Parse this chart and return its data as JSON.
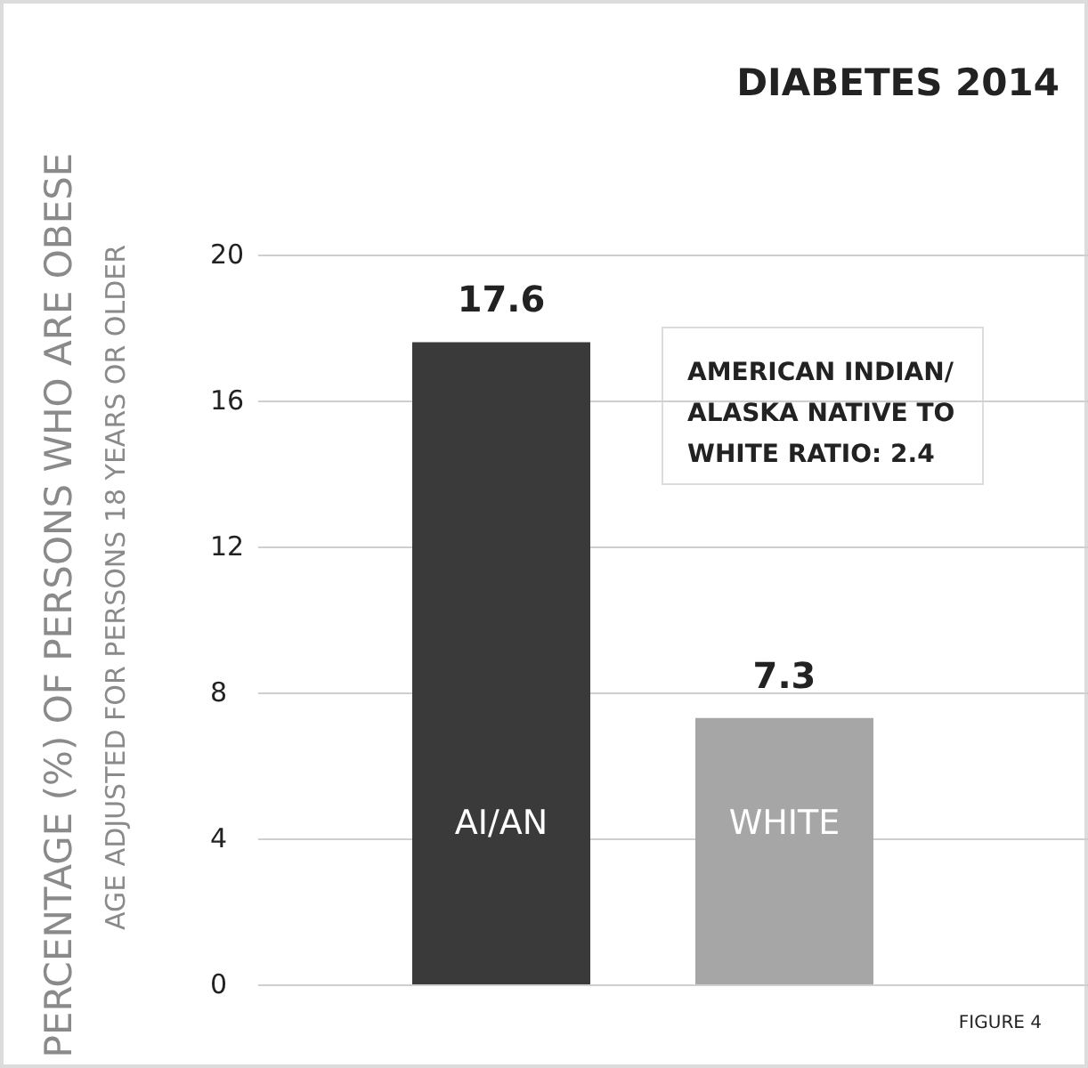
{
  "chart_data": {
    "type": "bar",
    "title": "DIABETES 2014",
    "ylabel": "PERCENTAGE (%) OF PERSONS WHO ARE OBESE",
    "categories": [
      "AI/AN",
      "WHITE"
    ],
    "values": [
      17.6,
      7.3
    ],
    "colors": [
      "#3a3a3a",
      "#a6a6a6"
    ],
    "ylim": [
      0,
      20
    ],
    "yticks": [
      0,
      4,
      8,
      12,
      16,
      20
    ],
    "grid": "y",
    "data_labels": true,
    "annotations": [
      "AGE ADJUSTED FOR PERSONS 18 YEARS OR OLDER",
      {
        "text": "AMERICAN INDIAN/\nALASKA NATIVE TO\nWHITE RATIO: 2.4"
      },
      "FIGURE 4"
    ]
  }
}
